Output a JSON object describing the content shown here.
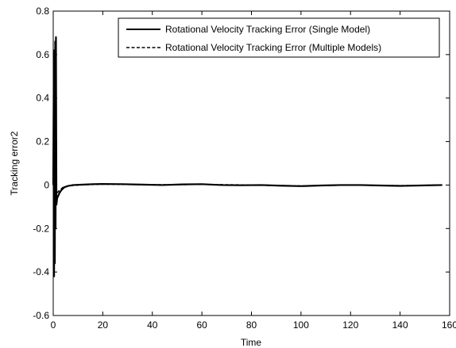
{
  "chart_data": {
    "type": "line",
    "title": "",
    "xlabel": "Time",
    "ylabel": "Tracking error2",
    "xlim": [
      0,
      160
    ],
    "ylim": [
      -0.6,
      0.8
    ],
    "x_ticks": [
      0,
      20,
      40,
      60,
      80,
      100,
      120,
      140,
      160
    ],
    "y_ticks": [
      -0.6,
      -0.4,
      -0.2,
      0,
      0.2,
      0.4,
      0.6,
      0.8
    ],
    "y_tick_labels": [
      "-0.6",
      "-0.4",
      "-0.2",
      "0",
      "0.2",
      "0.4",
      "0.6",
      "0.8"
    ],
    "legend_position": "top-right",
    "grid": false,
    "series": [
      {
        "name": "Rotational Velocity Tracking Error (Single Model)",
        "style": "solid",
        "color": "#000000",
        "x": [
          0,
          0.2,
          0.35,
          0.5,
          0.65,
          0.8,
          0.95,
          1.1,
          1.3,
          1.6,
          2,
          2.6,
          3.4,
          4.5,
          6,
          8,
          12,
          16,
          20,
          28,
          36,
          44,
          52,
          60,
          68,
          76,
          84,
          92,
          100,
          108,
          116,
          124,
          132,
          140,
          148,
          157
        ],
        "y": [
          0,
          0.45,
          -0.42,
          0.62,
          -0.36,
          0.66,
          -0.2,
          0.68,
          -0.09,
          -0.06,
          -0.05,
          -0.035,
          -0.022,
          -0.01,
          -0.004,
          0,
          0.002,
          0.004,
          0.005,
          0.004,
          0.002,
          0.0,
          0.003,
          0.004,
          0.0,
          -0.001,
          0.0,
          -0.003,
          -0.005,
          -0.002,
          0.0,
          0.0,
          -0.002,
          -0.004,
          -0.002,
          0.0
        ]
      },
      {
        "name": "Rotational Velocity Tracking Error (Multiple Models)",
        "style": "dashed",
        "color": "#000000",
        "x": [
          0,
          0.3,
          0.6,
          0.9,
          1.2,
          1.6,
          2,
          3,
          4,
          6,
          10,
          20,
          40,
          60,
          80,
          100,
          120,
          140,
          157
        ],
        "y": [
          0,
          0.1,
          -0.08,
          0.06,
          -0.05,
          -0.04,
          -0.03,
          -0.02,
          -0.01,
          -0.004,
          0,
          0.004,
          0.001,
          0.003,
          0.0,
          -0.004,
          0.0,
          -0.003,
          0.0
        ]
      }
    ]
  }
}
